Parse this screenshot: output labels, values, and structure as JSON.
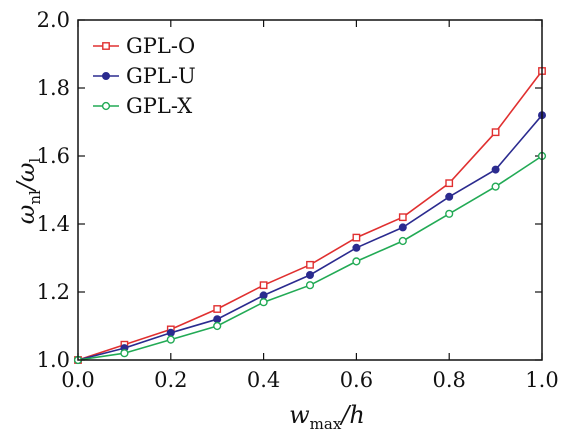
{
  "chart_data": {
    "type": "line",
    "xlabel_main": "w",
    "xlabel_sub": "max",
    "xlabel_tail": "/h",
    "ylabel_main": "ω",
    "ylabel_sub": "nl",
    "ylabel_mid": "/ω",
    "ylabel_sub2": "l",
    "xlim": [
      0.0,
      1.0
    ],
    "ylim": [
      1.0,
      2.0
    ],
    "xticks": [
      0.0,
      0.2,
      0.4,
      0.6,
      0.8,
      1.0
    ],
    "xtick_labels": [
      "0.0",
      "0.2",
      "0.4",
      "0.6",
      "0.8",
      "1.0"
    ],
    "yticks": [
      1.0,
      1.2,
      1.4,
      1.6,
      1.8,
      2.0
    ],
    "ytick_labels": [
      "1.0",
      "1.2",
      "1.4",
      "1.6",
      "1.8",
      "2.0"
    ],
    "legend_position": "top-left",
    "grid": false,
    "x": [
      0.0,
      0.1,
      0.2,
      0.3,
      0.4,
      0.5,
      0.6,
      0.7,
      0.8,
      0.9,
      1.0
    ],
    "series": [
      {
        "name": "GPL-O",
        "color": "#e03030",
        "marker": "square",
        "values": [
          1.0,
          1.045,
          1.09,
          1.15,
          1.22,
          1.28,
          1.36,
          1.42,
          1.52,
          1.67,
          1.85
        ]
      },
      {
        "name": "GPL-U",
        "color": "#2b2b8f",
        "marker": "circle-filled",
        "values": [
          1.0,
          1.035,
          1.08,
          1.12,
          1.19,
          1.25,
          1.33,
          1.39,
          1.48,
          1.56,
          1.72
        ]
      },
      {
        "name": "GPL-X",
        "color": "#22aa55",
        "marker": "circle-open",
        "values": [
          1.0,
          1.02,
          1.06,
          1.1,
          1.17,
          1.22,
          1.29,
          1.35,
          1.43,
          1.51,
          1.6
        ]
      }
    ]
  }
}
